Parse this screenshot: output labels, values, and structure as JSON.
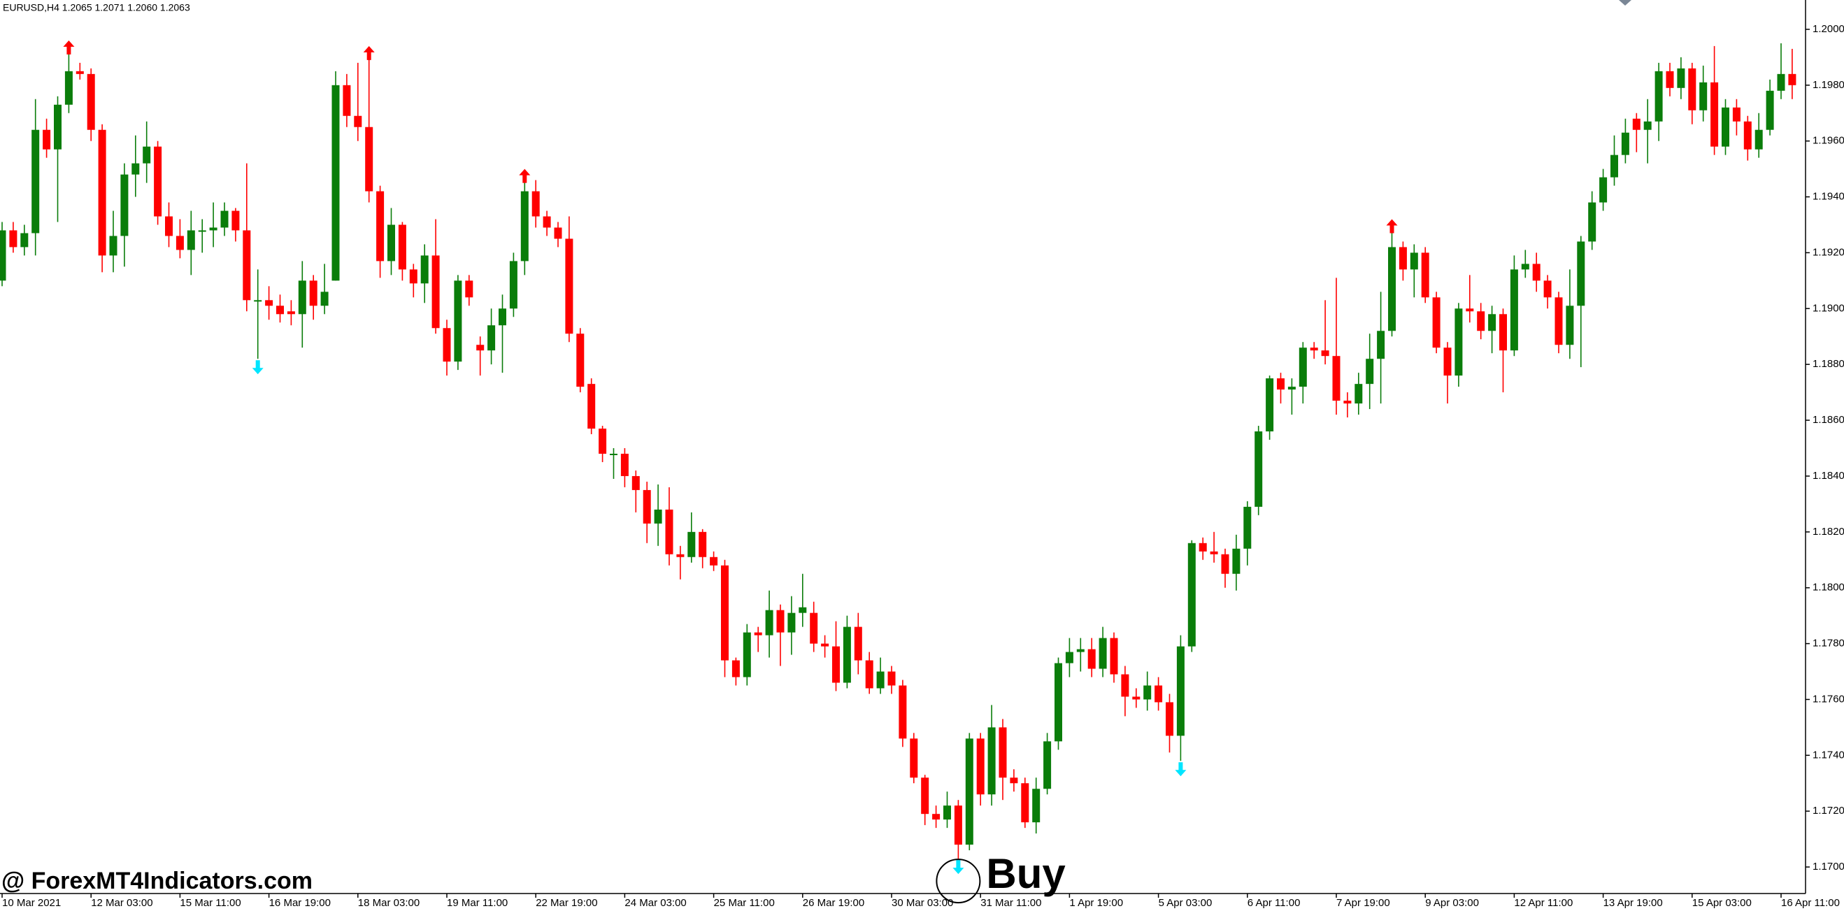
{
  "chart_data": {
    "type": "candlestick",
    "title": "EURUSD,H4  1.2065 1.2071 1.2060 1.2063",
    "watermark": "@ ForexMT4Indicators.com",
    "annotation": "Buy",
    "up_color": "#0a7d0a",
    "down_color": "#ff0000",
    "sell_arrow_color": "#ff0000",
    "buy_arrow_color": "#00e5ff",
    "ylim": [
      1.16905,
      1.20105
    ],
    "yticks": [
      {
        "value": 1.2,
        "label": "1.2000"
      },
      {
        "value": 1.198,
        "label": "1.1980"
      },
      {
        "value": 1.196,
        "label": "1.1960"
      },
      {
        "value": 1.194,
        "label": "1.1940"
      },
      {
        "value": 1.192,
        "label": "1.1920"
      },
      {
        "value": 1.19,
        "label": "1.1900"
      },
      {
        "value": 1.188,
        "label": "1.1880"
      },
      {
        "value": 1.186,
        "label": "1.1860"
      },
      {
        "value": 1.184,
        "label": "1.1840"
      },
      {
        "value": 1.182,
        "label": "1.1820"
      },
      {
        "value": 1.18,
        "label": "1.1800"
      },
      {
        "value": 1.178,
        "label": "1.1780"
      },
      {
        "value": 1.176,
        "label": "1.1760"
      },
      {
        "value": 1.174,
        "label": "1.1740"
      },
      {
        "value": 1.172,
        "label": "1.1720"
      },
      {
        "value": 1.17,
        "label": "1.1700"
      }
    ],
    "categories": [
      "10 Mar 2021",
      null,
      null,
      null,
      null,
      null,
      null,
      null,
      "12 Mar 03:00",
      null,
      null,
      null,
      null,
      null,
      null,
      null,
      "15 Mar 11:00",
      null,
      null,
      null,
      null,
      null,
      null,
      null,
      "16 Mar 19:00",
      null,
      null,
      null,
      null,
      null,
      null,
      null,
      "18 Mar 03:00",
      null,
      null,
      null,
      null,
      null,
      null,
      null,
      "19 Mar 11:00",
      null,
      null,
      null,
      null,
      null,
      null,
      null,
      "22 Mar 19:00",
      null,
      null,
      null,
      null,
      null,
      null,
      null,
      "24 Mar 03:00",
      null,
      null,
      null,
      null,
      null,
      null,
      null,
      "25 Mar 11:00",
      null,
      null,
      null,
      null,
      null,
      null,
      null,
      "26 Mar 19:00",
      null,
      null,
      null,
      null,
      null,
      null,
      null,
      "30 Mar 03:00",
      null,
      null,
      null,
      null,
      null,
      null,
      null,
      "31 Mar 11:00",
      null,
      null,
      null,
      null,
      null,
      null,
      null,
      "1 Apr 19:00",
      null,
      null,
      null,
      null,
      null,
      null,
      null,
      "5 Apr 03:00",
      null,
      null,
      null,
      null,
      null,
      null,
      null,
      "6 Apr 11:00",
      null,
      null,
      null,
      null,
      null,
      null,
      null,
      "7 Apr 19:00",
      null,
      null,
      null,
      null,
      null,
      null,
      null,
      "9 Apr 03:00",
      null,
      null,
      null,
      null,
      null,
      null,
      null,
      "12 Apr 11:00",
      null,
      null,
      null,
      null,
      null,
      null,
      null,
      "13 Apr 19:00",
      null,
      null,
      null,
      null,
      null,
      null,
      null,
      "15 Apr 03:00",
      null,
      null,
      null,
      null,
      null,
      null,
      null,
      "16 Apr 11:00",
      null
    ],
    "open": [
      1.191,
      1.1928,
      1.1922,
      1.1927,
      1.1964,
      1.1957,
      1.1973,
      1.1985,
      1.1984,
      1.1964,
      1.1919,
      1.1926,
      1.1948,
      1.1952,
      1.1958,
      1.1933,
      1.1926,
      1.1921,
      1.1928,
      1.1928,
      1.1929,
      1.1935,
      1.1928,
      1.1903,
      1.1903,
      1.1901,
      1.1899,
      1.1898,
      1.191,
      1.1901,
      1.191,
      1.198,
      1.1969,
      1.1965,
      1.1942,
      1.1917,
      1.193,
      1.1914,
      1.1909,
      1.1919,
      1.1893,
      1.1881,
      1.191,
      1.1887,
      1.1885,
      1.1894,
      1.19,
      1.1917,
      1.1942,
      1.1933,
      1.1929,
      1.1925,
      1.1891,
      1.1873,
      1.1857,
      1.1848,
      1.1848,
      1.184,
      1.1835,
      1.1823,
      1.1828,
      1.1812,
      1.1811,
      1.182,
      1.1811,
      1.1808,
      1.1774,
      1.1768,
      1.1784,
      1.1783,
      1.1792,
      1.1784,
      1.1791,
      1.1791,
      1.178,
      1.1779,
      1.1766,
      1.1786,
      1.1774,
      1.1764,
      1.177,
      1.1765,
      1.1746,
      1.1732,
      1.1719,
      1.1717,
      1.1722,
      1.1708,
      1.1746,
      1.1726,
      1.175,
      1.1732,
      1.173,
      1.1716,
      1.1728,
      1.1745,
      1.1773,
      1.1777,
      1.1778,
      1.1771,
      1.1782,
      1.1769,
      1.1761,
      1.176,
      1.1765,
      1.1759,
      1.1747,
      1.1779,
      1.1816,
      1.1813,
      1.1812,
      1.1805,
      1.1814,
      1.1829,
      1.1856,
      1.1875,
      1.1871,
      1.1872,
      1.1886,
      1.1885,
      1.1883,
      1.1867,
      1.1866,
      1.1873,
      1.1882,
      1.1892,
      1.1922,
      1.1914,
      1.192,
      1.1904,
      1.1886,
      1.1876,
      1.19,
      1.1899,
      1.1892,
      1.1898,
      1.1885,
      1.1914,
      1.1916,
      1.191,
      1.1904,
      1.1887,
      1.1901,
      1.1924,
      1.1938,
      1.1947,
      1.1955,
      1.1968,
      1.1964,
      1.1967,
      1.1985,
      1.1979,
      1.1986,
      1.1971,
      1.1981,
      1.1958,
      1.1972,
      1.1967,
      1.1957,
      1.1964,
      1.1978,
      1.1984
    ],
    "high": [
      1.1931,
      1.1931,
      1.193,
      1.1975,
      1.1968,
      1.1976,
      1.1992,
      1.1988,
      1.1986,
      1.1966,
      1.1935,
      1.1952,
      1.1962,
      1.1967,
      1.196,
      1.1938,
      1.1932,
      1.1935,
      1.1932,
      1.1938,
      1.1938,
      1.1936,
      1.1952,
      1.1914,
      1.1908,
      1.1905,
      1.1903,
      1.1917,
      1.1912,
      1.1916,
      1.1985,
      1.1984,
      1.1988,
      1.199,
      1.1944,
      1.1936,
      1.1931,
      1.1916,
      1.1923,
      1.1932,
      1.1896,
      1.1912,
      1.1912,
      1.189,
      1.19,
      1.1905,
      1.192,
      1.1946,
      1.1946,
      1.1935,
      1.1931,
      1.1933,
      1.1893,
      1.1875,
      1.1858,
      1.185,
      1.185,
      1.1842,
      1.1838,
      1.1837,
      1.1836,
      1.1815,
      1.1827,
      1.1821,
      1.1813,
      1.181,
      1.1775,
      1.1787,
      1.1786,
      1.1799,
      1.1794,
      1.1797,
      1.1805,
      1.1795,
      1.1783,
      1.1788,
      1.179,
      1.1791,
      1.1777,
      1.1775,
      1.1772,
      1.1767,
      1.1748,
      1.1733,
      1.1722,
      1.1727,
      1.1724,
      1.1748,
      1.1748,
      1.1758,
      1.1753,
      1.1735,
      1.1732,
      1.1732,
      1.1748,
      1.1775,
      1.1782,
      1.1782,
      1.1782,
      1.1786,
      1.1784,
      1.1772,
      1.1764,
      1.177,
      1.1768,
      1.1762,
      1.1783,
      1.1817,
      1.1818,
      1.182,
      1.1814,
      1.1819,
      1.1831,
      1.1858,
      1.1876,
      1.1877,
      1.1875,
      1.1888,
      1.1888,
      1.1903,
      1.1911,
      1.187,
      1.1877,
      1.1891,
      1.1906,
      1.1928,
      1.1924,
      1.1923,
      1.1922,
      1.1906,
      1.1888,
      1.1902,
      1.1912,
      1.1902,
      1.1901,
      1.19,
      1.1919,
      1.1921,
      1.192,
      1.1912,
      1.1906,
      1.1914,
      1.1926,
      1.1942,
      1.195,
      1.1962,
      1.1968,
      1.197,
      1.1975,
      1.1988,
      1.1988,
      1.199,
      1.1988,
      1.1987,
      1.1994,
      1.1975,
      1.1975,
      1.1969,
      1.197,
      1.1982,
      1.1995,
      1.1993
    ],
    "low": [
      1.1908,
      1.192,
      1.1919,
      1.1919,
      1.1954,
      1.1931,
      1.197,
      1.1982,
      1.196,
      1.1913,
      1.1913,
      1.1915,
      1.194,
      1.1945,
      1.193,
      1.1922,
      1.1918,
      1.1912,
      1.192,
      1.1922,
      1.1926,
      1.1924,
      1.1899,
      1.1882,
      1.1896,
      1.1895,
      1.1894,
      1.1886,
      1.1896,
      1.1898,
      1.191,
      1.1965,
      1.196,
      1.1938,
      1.1911,
      1.1912,
      1.191,
      1.1904,
      1.1902,
      1.1891,
      1.1876,
      1.1878,
      1.1901,
      1.1876,
      1.188,
      1.1877,
      1.1897,
      1.1912,
      1.1929,
      1.1926,
      1.1922,
      1.1888,
      1.187,
      1.1855,
      1.1845,
      1.1839,
      1.1836,
      1.1827,
      1.1816,
      1.1815,
      1.1808,
      1.1803,
      1.1809,
      1.1807,
      1.1806,
      1.1768,
      1.1765,
      1.1765,
      1.1777,
      1.1775,
      1.1772,
      1.1776,
      1.1786,
      1.1777,
      1.1775,
      1.1763,
      1.1764,
      1.1769,
      1.1762,
      1.1762,
      1.1762,
      1.1743,
      1.173,
      1.1715,
      1.1714,
      1.1714,
      1.1703,
      1.1706,
      1.1722,
      1.1722,
      1.1724,
      1.1727,
      1.1714,
      1.1712,
      1.1726,
      1.1742,
      1.1768,
      1.177,
      1.1768,
      1.1768,
      1.1766,
      1.1754,
      1.1757,
      1.1756,
      1.1756,
      1.1741,
      1.1738,
      1.1777,
      1.181,
      1.1809,
      1.18,
      1.1799,
      1.1808,
      1.1826,
      1.1853,
      1.1866,
      1.1862,
      1.1866,
      1.1882,
      1.188,
      1.1862,
      1.1861,
      1.1862,
      1.1864,
      1.1866,
      1.189,
      1.191,
      1.1904,
      1.1902,
      1.1884,
      1.1866,
      1.1872,
      1.1895,
      1.1889,
      1.1884,
      1.187,
      1.1883,
      1.1911,
      1.1906,
      1.19,
      1.1884,
      1.1882,
      1.1879,
      1.1921,
      1.1935,
      1.1944,
      1.1952,
      1.1956,
      1.1952,
      1.196,
      1.1976,
      1.1975,
      1.1966,
      1.1967,
      1.1955,
      1.1955,
      1.1962,
      1.1953,
      1.1954,
      1.1962,
      1.1975,
      1.1975
    ],
    "close": [
      1.1928,
      1.1922,
      1.1927,
      1.1964,
      1.1957,
      1.1973,
      1.1985,
      1.1984,
      1.1964,
      1.1919,
      1.1926,
      1.1948,
      1.1952,
      1.1958,
      1.1933,
      1.1926,
      1.1921,
      1.1928,
      1.1928,
      1.1929,
      1.1935,
      1.1928,
      1.1903,
      1.1903,
      1.1901,
      1.1898,
      1.1898,
      1.191,
      1.1901,
      1.1906,
      1.198,
      1.1969,
      1.1965,
      1.1942,
      1.1917,
      1.193,
      1.1914,
      1.1909,
      1.1919,
      1.1893,
      1.1881,
      1.191,
      1.1904,
      1.1885,
      1.1894,
      1.19,
      1.1917,
      1.1942,
      1.1933,
      1.1929,
      1.1925,
      1.1891,
      1.1872,
      1.1857,
      1.1848,
      1.1848,
      1.184,
      1.1835,
      1.1823,
      1.1828,
      1.1812,
      1.1811,
      1.182,
      1.1811,
      1.1808,
      1.1774,
      1.1768,
      1.1784,
      1.1783,
      1.1792,
      1.1784,
      1.1791,
      1.1793,
      1.178,
      1.1779,
      1.1766,
      1.1786,
      1.1774,
      1.1764,
      1.177,
      1.1765,
      1.1746,
      1.1732,
      1.1719,
      1.1717,
      1.1722,
      1.1708,
      1.1746,
      1.1726,
      1.175,
      1.1732,
      1.173,
      1.1716,
      1.1728,
      1.1745,
      1.1773,
      1.1777,
      1.1778,
      1.1771,
      1.1782,
      1.1769,
      1.1761,
      1.176,
      1.1765,
      1.1759,
      1.1747,
      1.1779,
      1.1816,
      1.1813,
      1.1812,
      1.1805,
      1.1814,
      1.1829,
      1.1856,
      1.1875,
      1.1871,
      1.1872,
      1.1886,
      1.1885,
      1.1883,
      1.1867,
      1.1866,
      1.1873,
      1.1882,
      1.1892,
      1.1922,
      1.1914,
      1.192,
      1.1904,
      1.1886,
      1.1876,
      1.19,
      1.1899,
      1.1892,
      1.1898,
      1.1885,
      1.1914,
      1.1916,
      1.191,
      1.1904,
      1.1887,
      1.1901,
      1.1924,
      1.1938,
      1.1947,
      1.1955,
      1.1963,
      1.1964,
      1.1967,
      1.1985,
      1.1979,
      1.1986,
      1.1971,
      1.1981,
      1.1958,
      1.1972,
      1.1967,
      1.1957,
      1.1964,
      1.1978,
      1.1984,
      1.198
    ],
    "sell_arrows": [
      6,
      33,
      47,
      125
    ],
    "buy_arrows": [
      23,
      86,
      106
    ],
    "buy_circle_arrow": 86
  }
}
